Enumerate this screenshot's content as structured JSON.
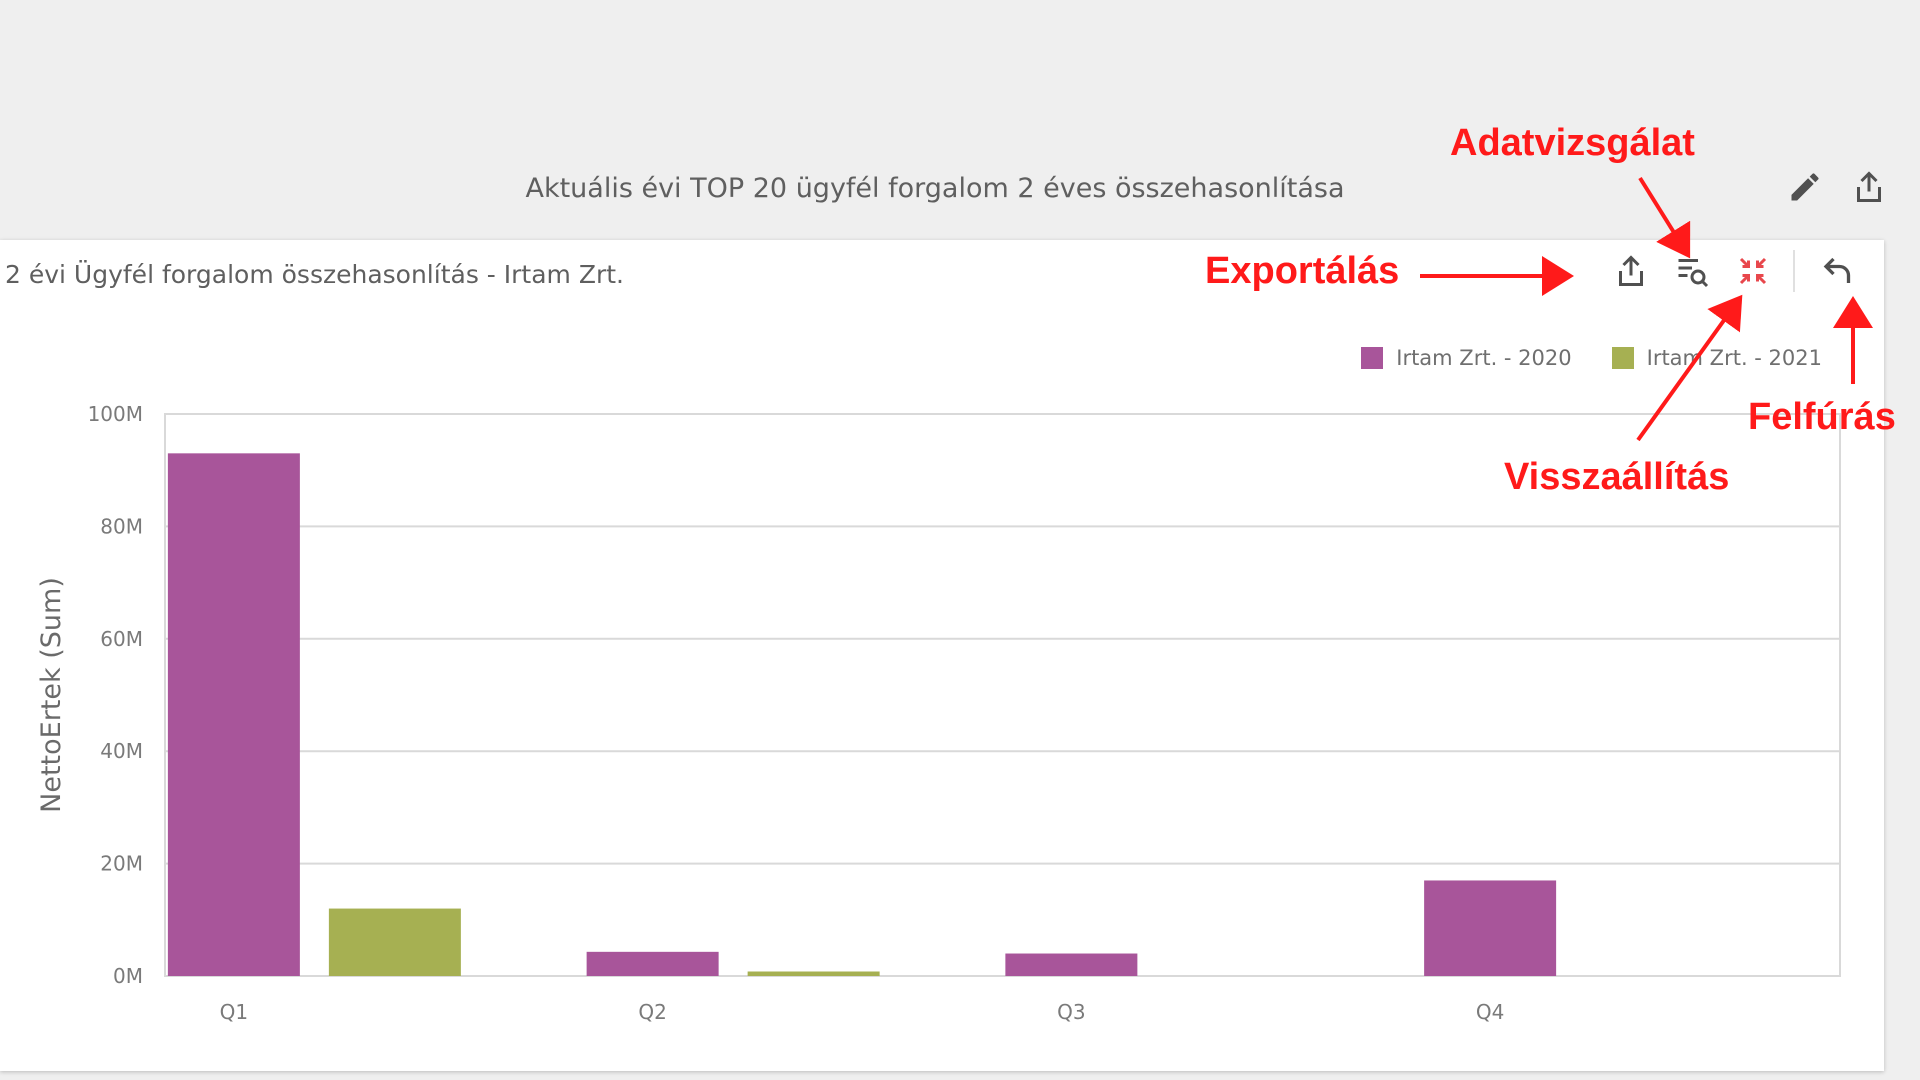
{
  "dashboard": {
    "title": "Aktuális évi TOP 20 ügyfél forgalom 2 éves összehasonlítása",
    "actions": [
      {
        "name": "edit-icon",
        "icon": "pencil"
      },
      {
        "name": "export-icon",
        "icon": "share"
      }
    ]
  },
  "panel": {
    "title": "2 évi Ügyfél forgalom összehasonlítás - Irtam Zrt.",
    "toolbar": [
      {
        "name": "export-button",
        "icon": "share"
      },
      {
        "name": "inspect-data-button",
        "icon": "list-search"
      },
      {
        "name": "reset-button",
        "icon": "collapse-arrows",
        "color": "#e8474c"
      },
      {
        "name": "drill-up-button",
        "icon": "undo-arrow"
      }
    ]
  },
  "legend": [
    {
      "label": "Irtam Zrt. - 2020",
      "color": "#a8559a"
    },
    {
      "label": "Irtam Zrt. - 2021",
      "color": "#a6b052"
    }
  ],
  "chart_data": {
    "type": "bar",
    "categories": [
      "Q1",
      "Q2",
      "Q3",
      "Q4"
    ],
    "series": [
      {
        "name": "Irtam Zrt. - 2020",
        "color": "#a8559a",
        "values": [
          93,
          4.3,
          4,
          17
        ]
      },
      {
        "name": "Irtam Zrt. - 2021",
        "color": "#a6b052",
        "values": [
          12,
          0.8,
          0,
          0
        ]
      }
    ],
    "ylabel": "NettoErtek (Sum)",
    "xlabel": "",
    "ylim": [
      0,
      100
    ],
    "yticks": [
      "0M",
      "20M",
      "40M",
      "60M",
      "80M",
      "100M"
    ],
    "grid": true,
    "legend_position": "top-right"
  },
  "annotations": {
    "inspect": "Adatvizsgálat",
    "export": "Exportálás",
    "drill_up": "Felfúrás",
    "reset": "Visszaállítás",
    "color": "#ff1a1a"
  }
}
